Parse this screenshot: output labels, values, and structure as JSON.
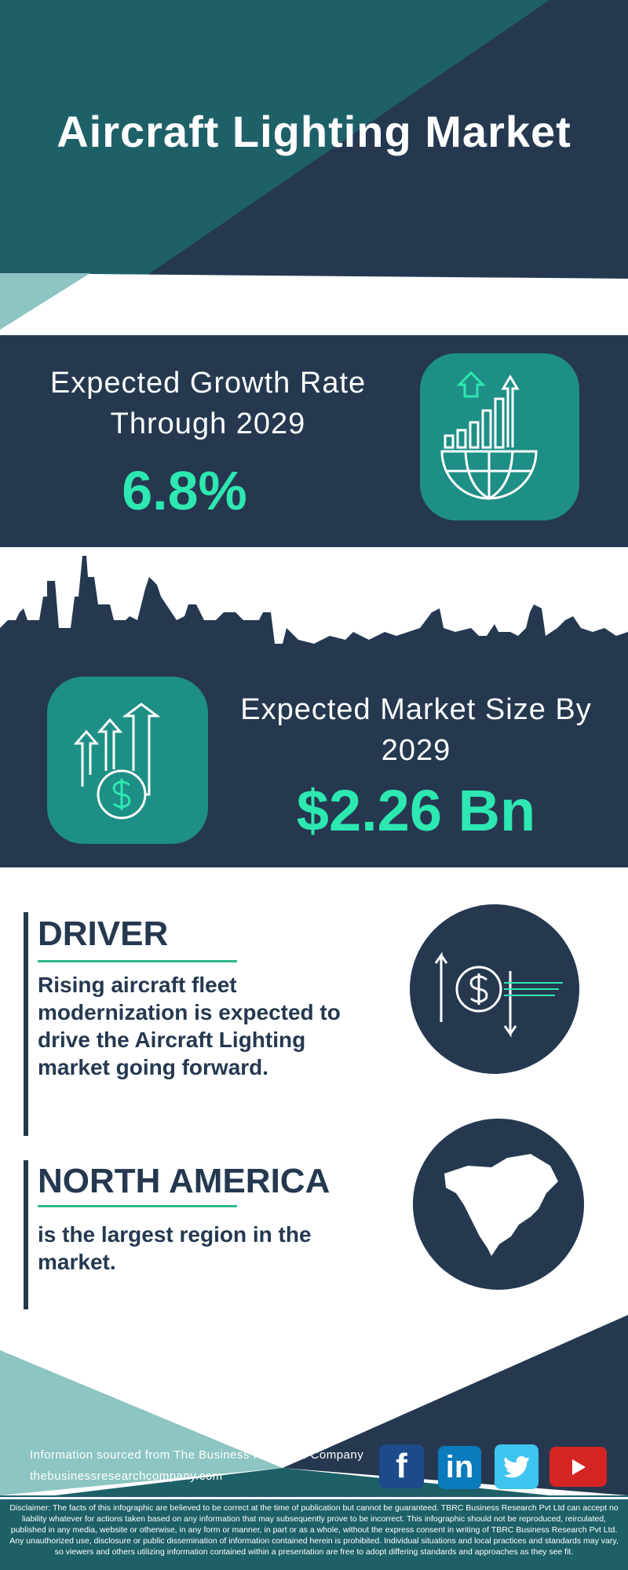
{
  "title": "Aircraft Lighting Market",
  "growth": {
    "label": "Expected Growth Rate Through 2029",
    "value": "6.8%"
  },
  "market": {
    "label": "Expected Market Size By 2029",
    "value": "$2.26 Bn"
  },
  "driver": {
    "heading": "DRIVER",
    "text": "Rising aircraft fleet modernization is expected to drive the Aircraft Lighting market going forward."
  },
  "region": {
    "heading": "NORTH AMERICA",
    "text": "is the largest region in the market."
  },
  "footer": {
    "source": "Information sourced from The Business Research Company",
    "website": "thebusinessresearchcompany.com",
    "social": {
      "facebook": "f",
      "linkedin": "in"
    }
  },
  "disclaimer": "Disclaimer: The facts of this infographic are believed to be correct at the time of publication but cannot be guaranteed. TBRC Business Research Pvt Ltd can accept no liability whatever for actions taken based on any information that may subsequently prove to be incorrect. This infographic should not be reproduced, reirculated, published in any media, website or otherwise, in any form or manner, in part or as a whole, without the express consent in writing of TBRC Business Research Pvt Ltd. Any unauthorized use, disclosure or public dissemination of information contained herein is prohibited. Individual situations and local practices and standards may vary, so viewers and others utilizing information contained within a presentation are free to adopt differing standards and approaches as they see fit.",
  "colors": {
    "navy": "#253850",
    "teal": "#1e6068",
    "light_teal": "#8cc5c1",
    "accent": "#2de8b0",
    "icon_box": "#1e8f86"
  }
}
